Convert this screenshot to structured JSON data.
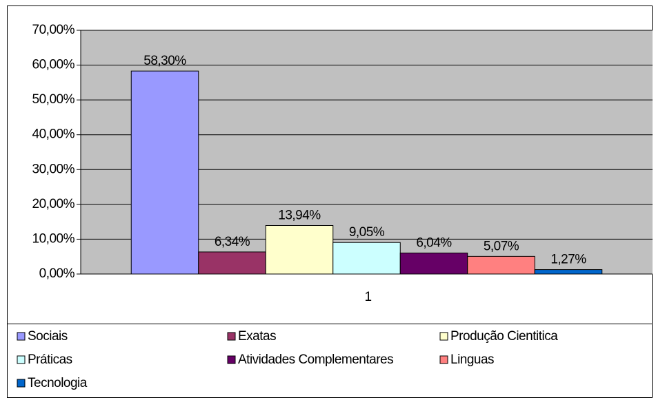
{
  "chart_data": {
    "type": "bar",
    "categories": [
      "1"
    ],
    "series": [
      {
        "name": "Sociais",
        "color": "#9999ff",
        "values": [
          58.3
        ],
        "value_labels": [
          "58,30%"
        ]
      },
      {
        "name": "Exatas",
        "color": "#993366",
        "values": [
          6.34
        ],
        "value_labels": [
          "6,34%"
        ]
      },
      {
        "name": "Produção Cientitica",
        "color": "#ffffcc",
        "values": [
          13.94
        ],
        "value_labels": [
          "13,94%"
        ]
      },
      {
        "name": "Práticas",
        "color": "#ccffff",
        "values": [
          9.05
        ],
        "value_labels": [
          "9,05%"
        ]
      },
      {
        "name": "Atividades Complementares",
        "color": "#660066",
        "values": [
          6.04
        ],
        "value_labels": [
          "6,04%"
        ]
      },
      {
        "name": "Linguas",
        "color": "#ff8080",
        "values": [
          5.07
        ],
        "value_labels": [
          "5,07%"
        ]
      },
      {
        "name": "Tecnologia",
        "color": "#0066cc",
        "values": [
          1.27
        ],
        "value_labels": [
          "1,27%"
        ]
      }
    ],
    "ylim": [
      0,
      70
    ],
    "yticks": [
      {
        "value": 0,
        "label": "0,00%"
      },
      {
        "value": 10,
        "label": "10,00%"
      },
      {
        "value": 20,
        "label": "20,00%"
      },
      {
        "value": 30,
        "label": "30,00%"
      },
      {
        "value": 40,
        "label": "40,00%"
      },
      {
        "value": 50,
        "label": "50,00%"
      },
      {
        "value": 60,
        "label": "60,00%"
      },
      {
        "value": 70,
        "label": "70,00%"
      }
    ],
    "grid": true,
    "legend": "bottom"
  }
}
